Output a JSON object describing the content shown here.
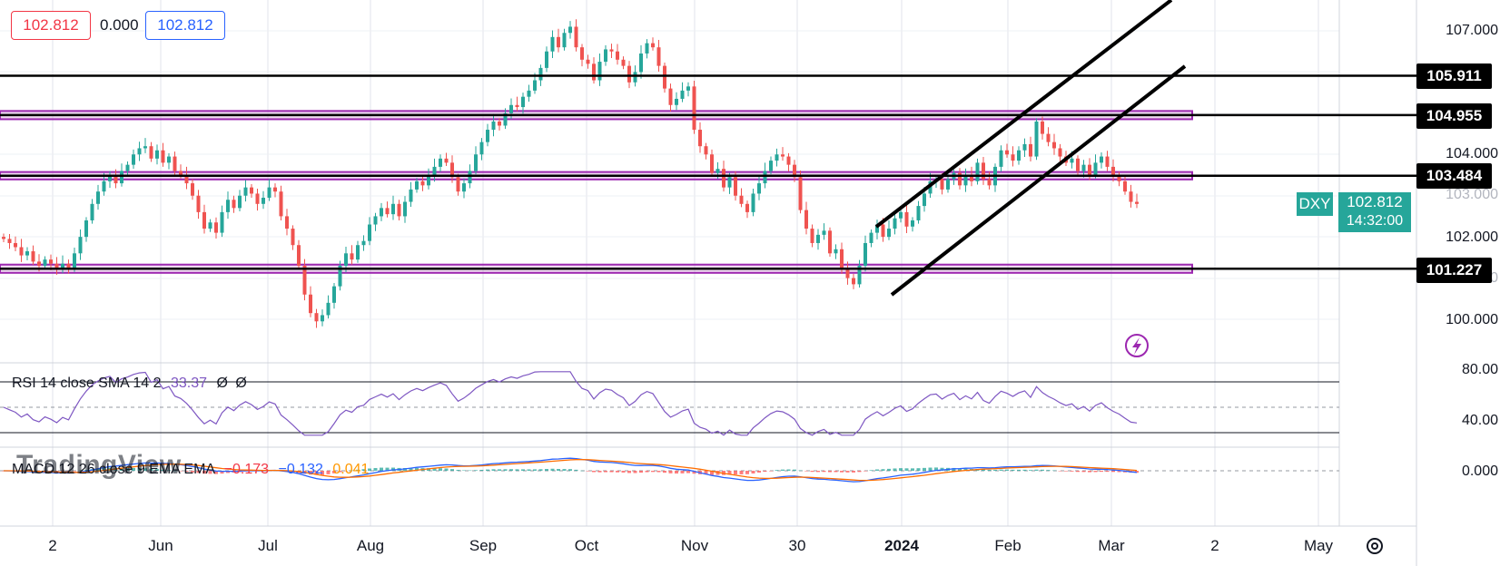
{
  "header": {
    "open_value": "102.812",
    "change_value": "0.000",
    "close_value": "102.812"
  },
  "symbol": {
    "ticker": "DXY",
    "last_price": "102.812",
    "countdown": "14:32:00",
    "accent_color": "#26a69a"
  },
  "price_axis": {
    "labels": [
      "107.000",
      "104.000",
      "103.000",
      "102.000",
      "101.000",
      "100.000"
    ]
  },
  "horizontal_levels": [
    {
      "value": 105.911,
      "label": "105.911"
    },
    {
      "value": 104.955,
      "label": "104.955"
    },
    {
      "value": 103.484,
      "label": "103.484"
    },
    {
      "value": 101.227,
      "label": "101.227"
    }
  ],
  "time_axis": {
    "labels": [
      "2",
      "Jun",
      "Jul",
      "Aug",
      "Sep",
      "Oct",
      "Nov",
      "30",
      "2024",
      "Feb",
      "Mar",
      "2",
      "May"
    ]
  },
  "rsi": {
    "legend": "RSI 14 close SMA 14 2",
    "value": "33.37",
    "extra1": "Ø",
    "extra2": "Ø",
    "axis_labels": [
      "80.00",
      "40.00"
    ],
    "color": "#7e57c2"
  },
  "macd": {
    "legend": "MACD 12 26 close 9 EMA EMA",
    "hist": "−0.173",
    "macd": "−0.132",
    "signal": "0.041",
    "axis_label": "0.000"
  },
  "watermark": "TradingView",
  "chart_data": {
    "type": "candlestick",
    "symbol": "DXY",
    "ylim": [
      99.5,
      107.5
    ],
    "y_ticks": [
      100,
      101,
      102,
      103,
      104,
      107
    ],
    "closes": [
      101.95,
      101.85,
      101.75,
      101.55,
      101.65,
      101.4,
      101.3,
      101.45,
      101.35,
      101.2,
      101.35,
      101.25,
      101.6,
      102.0,
      102.4,
      102.8,
      103.1,
      103.35,
      103.5,
      103.3,
      103.6,
      103.75,
      104.0,
      104.15,
      104.2,
      103.9,
      104.1,
      103.8,
      103.95,
      103.6,
      103.5,
      103.3,
      103.0,
      102.6,
      102.2,
      102.35,
      102.1,
      102.6,
      102.9,
      102.7,
      103.0,
      103.2,
      103.05,
      102.8,
      102.95,
      103.2,
      103.1,
      102.5,
      102.2,
      101.8,
      101.3,
      100.6,
      100.15,
      99.95,
      100.1,
      100.4,
      100.8,
      101.3,
      101.6,
      101.45,
      101.8,
      101.9,
      102.3,
      102.5,
      102.7,
      102.55,
      102.8,
      102.5,
      102.85,
      103.15,
      103.35,
      103.25,
      103.5,
      103.7,
      103.9,
      103.8,
      103.45,
      103.1,
      103.3,
      103.6,
      104.0,
      104.3,
      104.6,
      104.8,
      104.7,
      105.0,
      105.2,
      105.15,
      105.4,
      105.55,
      105.8,
      106.1,
      106.5,
      106.85,
      106.6,
      106.95,
      107.1,
      106.6,
      106.3,
      106.2,
      105.8,
      106.25,
      106.55,
      106.5,
      106.3,
      106.15,
      105.75,
      106.0,
      106.45,
      106.7,
      106.6,
      106.15,
      105.6,
      105.2,
      105.35,
      105.55,
      105.65,
      104.6,
      104.2,
      104.0,
      103.55,
      103.65,
      103.2,
      103.45,
      103.0,
      102.8,
      102.6,
      103.05,
      103.3,
      103.6,
      103.85,
      104.0,
      103.95,
      103.75,
      103.45,
      102.65,
      102.2,
      101.85,
      102.05,
      102.15,
      101.6,
      101.7,
      101.2,
      101.0,
      100.85,
      101.3,
      101.85,
      102.1,
      102.3,
      102.0,
      102.2,
      102.45,
      102.6,
      102.25,
      102.4,
      102.75,
      103.05,
      103.35,
      103.4,
      103.15,
      103.4,
      103.55,
      103.25,
      103.5,
      103.35,
      103.8,
      103.4,
      103.25,
      103.7,
      104.1,
      104.0,
      103.85,
      104.1,
      104.25,
      103.95,
      104.8,
      104.5,
      104.3,
      104.15,
      103.95,
      103.8,
      103.9,
      103.6,
      103.75,
      103.5,
      103.8,
      103.95,
      103.7,
      103.5,
      103.35,
      103.1,
      102.85,
      102.8
    ]
  }
}
